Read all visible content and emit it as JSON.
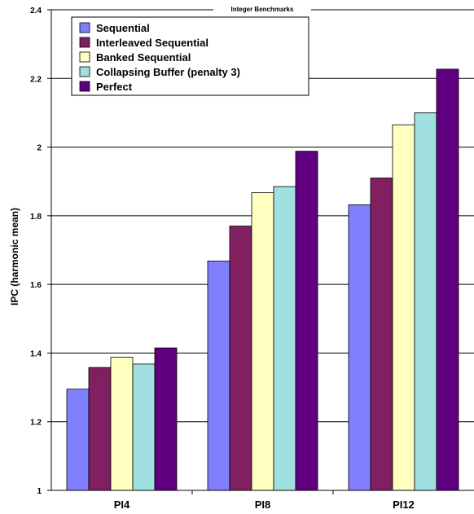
{
  "chart_data": {
    "type": "bar",
    "title": "Integer Benchmarks",
    "ylabel": "IPC (harmonic mean)",
    "xlabel": "",
    "categories": [
      "PI4",
      "PI8",
      "PI12"
    ],
    "ylim": [
      1,
      2.4
    ],
    "yticks": [
      "1",
      "1.2",
      "1.4",
      "1.6",
      "1.8",
      "2",
      "2.2",
      "2.4"
    ],
    "grid": true,
    "legend_position": "top-left",
    "series": [
      {
        "name": "Sequential",
        "color": "#8080ff",
        "values": [
          1.295,
          1.668,
          1.832
        ]
      },
      {
        "name": "Interleaved Sequential",
        "color": "#802060",
        "values": [
          1.358,
          1.77,
          1.91
        ]
      },
      {
        "name": "Banked Sequential",
        "color": "#ffffc0",
        "values": [
          1.388,
          1.867,
          2.065
        ]
      },
      {
        "name": "Collapsing Buffer (penalty 3)",
        "color": "#a0e0e0",
        "values": [
          1.368,
          1.885,
          2.1
        ]
      },
      {
        "name": "Perfect",
        "color": "#600080",
        "values": [
          1.415,
          1.988,
          2.227
        ]
      }
    ]
  }
}
